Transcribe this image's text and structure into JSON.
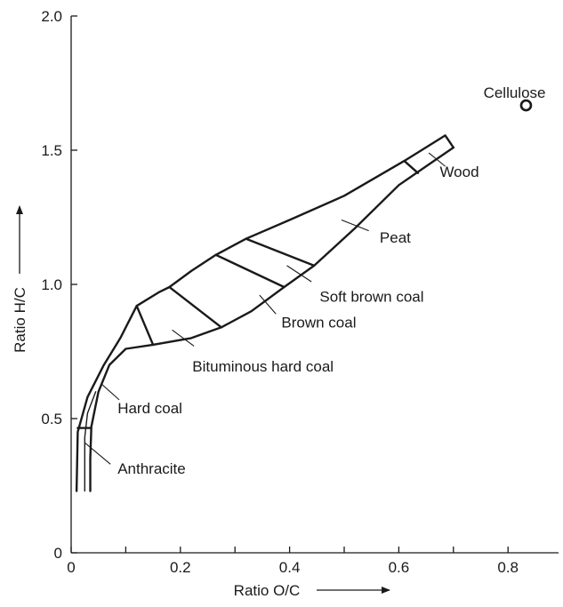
{
  "chart_data": {
    "type": "scatter",
    "title": "",
    "xlabel": "Ratio O/C",
    "ylabel": "Ratio H/C",
    "xlim": [
      0,
      0.9
    ],
    "ylim": [
      0,
      2.0
    ],
    "x_ticks": [
      {
        "value": 0,
        "label": "0"
      },
      {
        "value": 0.1,
        "label": ""
      },
      {
        "value": 0.2,
        "label": "0.2"
      },
      {
        "value": 0.3,
        "label": ""
      },
      {
        "value": 0.4,
        "label": "0.4"
      },
      {
        "value": 0.5,
        "label": ""
      },
      {
        "value": 0.6,
        "label": "0.6"
      },
      {
        "value": 0.7,
        "label": ""
      },
      {
        "value": 0.8,
        "label": "0.8"
      }
    ],
    "y_ticks": [
      {
        "value": 0,
        "label": "0"
      },
      {
        "value": 0.5,
        "label": "0.5"
      },
      {
        "value": 1.0,
        "label": "1.0"
      },
      {
        "value": 1.5,
        "label": "1.5"
      },
      {
        "value": 2.0,
        "label": "2.0"
      }
    ],
    "band_upper": [
      [
        0.01,
        0.23
      ],
      [
        0.012,
        0.45
      ],
      [
        0.03,
        0.58
      ],
      [
        0.06,
        0.7
      ],
      [
        0.09,
        0.8
      ],
      [
        0.12,
        0.92
      ],
      [
        0.16,
        0.97
      ],
      [
        0.18,
        0.99
      ],
      [
        0.22,
        1.05
      ],
      [
        0.265,
        1.11
      ],
      [
        0.32,
        1.17
      ],
      [
        0.4,
        1.24
      ],
      [
        0.5,
        1.33
      ],
      [
        0.61,
        1.46
      ],
      [
        0.685,
        1.555
      ],
      [
        0.7,
        1.51
      ]
    ],
    "band_lower": [
      [
        0.7,
        1.51
      ],
      [
        0.65,
        1.44
      ],
      [
        0.6,
        1.37
      ],
      [
        0.52,
        1.21
      ],
      [
        0.445,
        1.07
      ],
      [
        0.39,
        0.99
      ],
      [
        0.33,
        0.9
      ],
      [
        0.275,
        0.84
      ],
      [
        0.22,
        0.8
      ],
      [
        0.15,
        0.775
      ],
      [
        0.1,
        0.76
      ],
      [
        0.07,
        0.7
      ],
      [
        0.05,
        0.6
      ],
      [
        0.037,
        0.47
      ],
      [
        0.035,
        0.35
      ],
      [
        0.035,
        0.23
      ]
    ],
    "band_bottom_opening": true,
    "dividers": [
      [
        [
          0.012,
          0.465
        ],
        [
          0.036,
          0.465
        ]
      ],
      [
        [
          0.12,
          0.92
        ],
        [
          0.15,
          0.775
        ]
      ],
      [
        [
          0.18,
          0.99
        ],
        [
          0.275,
          0.84
        ]
      ],
      [
        [
          0.265,
          1.11
        ],
        [
          0.39,
          0.99
        ]
      ],
      [
        [
          0.32,
          1.17
        ],
        [
          0.445,
          1.07
        ]
      ],
      [
        [
          0.61,
          1.46
        ],
        [
          0.635,
          1.415
        ]
      ]
    ],
    "inner_contour": [
      [
        0.025,
        0.23
      ],
      [
        0.025,
        0.43
      ],
      [
        0.03,
        0.52
      ],
      [
        0.045,
        0.6
      ]
    ],
    "points": [
      {
        "name": "Cellulose",
        "x": 0.833,
        "y": 1.667,
        "marker": "open-circle"
      }
    ],
    "annotations": [
      {
        "text": "Cellulose",
        "x": 0.755,
        "y": 1.695,
        "anchor": "start",
        "leader": null
      },
      {
        "text": "Wood",
        "x": 0.675,
        "y": 1.4,
        "anchor": "start",
        "leader": [
          [
            0.655,
            1.49
          ],
          [
            0.685,
            1.44
          ]
        ]
      },
      {
        "text": "Peat",
        "x": 0.565,
        "y": 1.155,
        "anchor": "start",
        "leader": [
          [
            0.495,
            1.24
          ],
          [
            0.545,
            1.2
          ]
        ]
      },
      {
        "text": "Soft brown coal",
        "x": 0.455,
        "y": 0.935,
        "anchor": "start",
        "leader": [
          [
            0.395,
            1.07
          ],
          [
            0.44,
            1.01
          ]
        ]
      },
      {
        "text": "Brown coal",
        "x": 0.385,
        "y": 0.84,
        "anchor": "start",
        "leader": [
          [
            0.345,
            0.96
          ],
          [
            0.375,
            0.89
          ]
        ]
      },
      {
        "text": "Bituminous hard coal",
        "x": 0.222,
        "y": 0.675,
        "anchor": "start",
        "leader": [
          [
            0.185,
            0.83
          ],
          [
            0.225,
            0.77
          ]
        ]
      },
      {
        "text": "Hard coal",
        "x": 0.085,
        "y": 0.52,
        "anchor": "start",
        "leader": [
          [
            0.055,
            0.63
          ],
          [
            0.088,
            0.57
          ]
        ]
      },
      {
        "text": "Anthracite",
        "x": 0.085,
        "y": 0.295,
        "anchor": "start",
        "leader": [
          [
            0.025,
            0.41
          ],
          [
            0.072,
            0.33
          ]
        ]
      }
    ],
    "grid": false,
    "legend": "none"
  }
}
